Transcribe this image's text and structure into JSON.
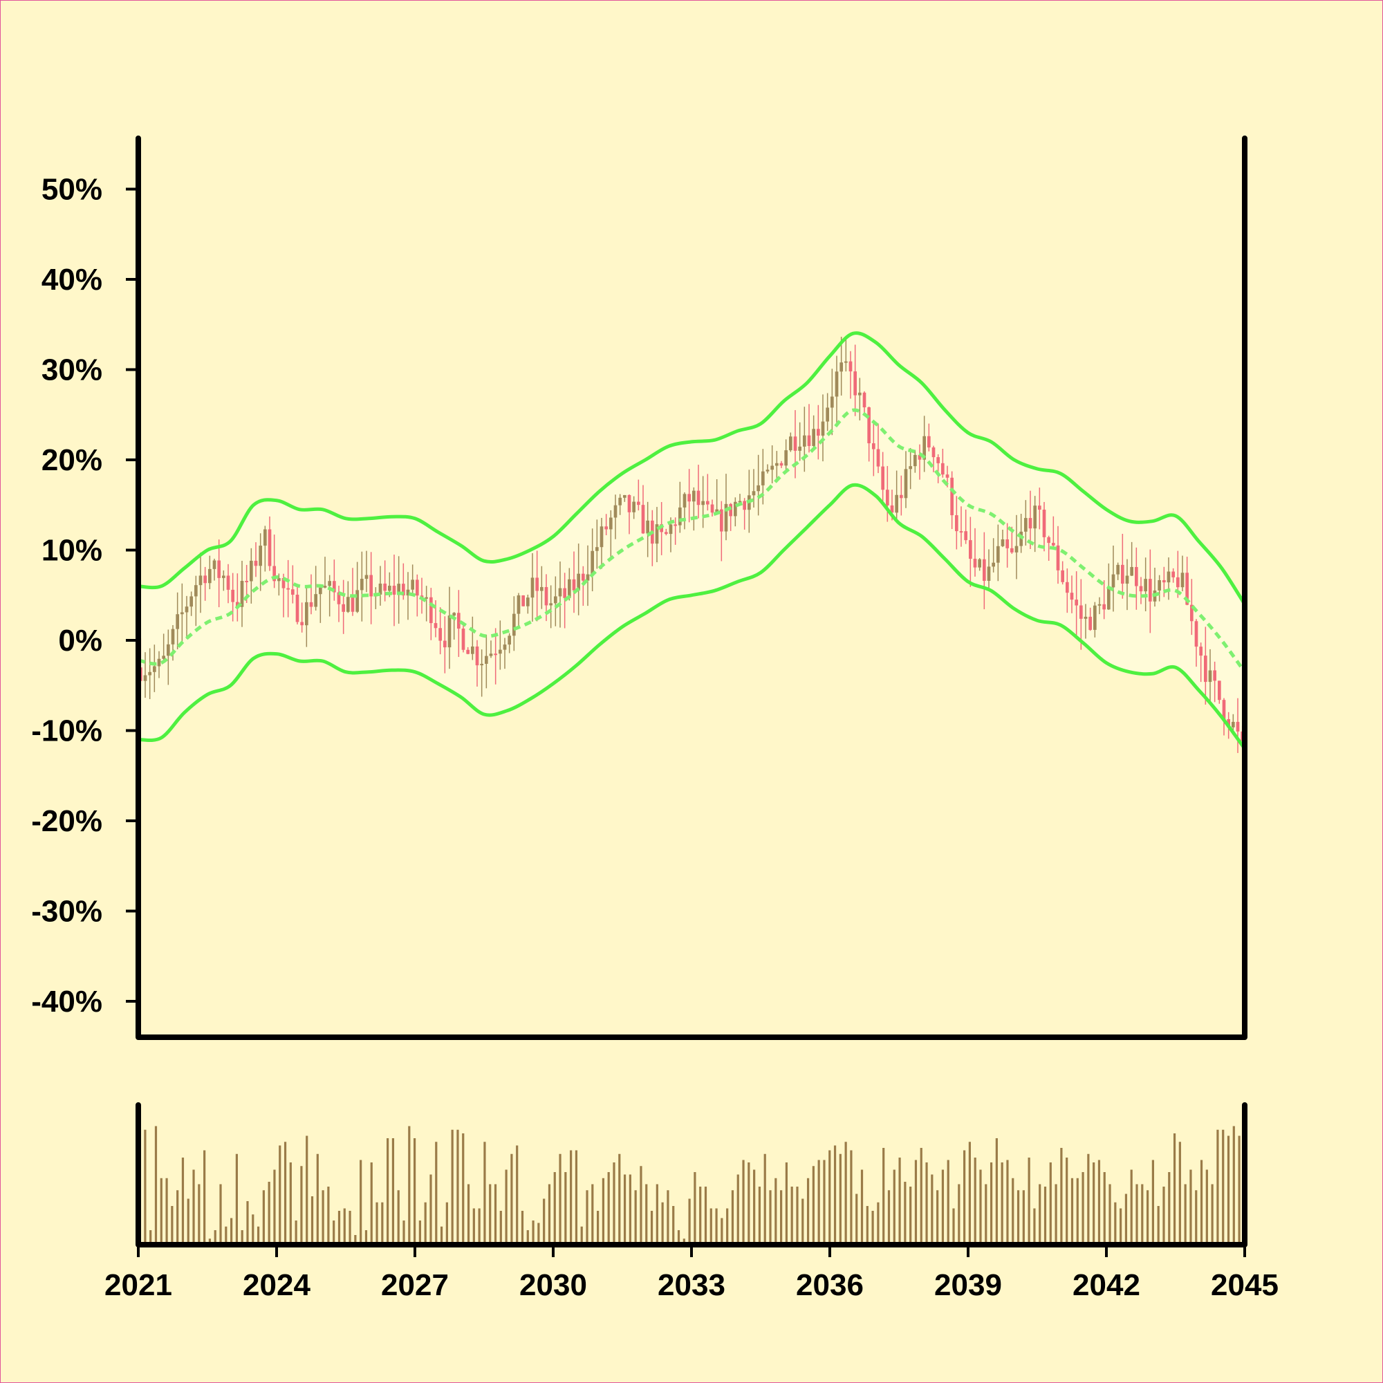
{
  "chart_data": {
    "type": "candlestick",
    "x_range": [
      2021,
      2045
    ],
    "ylim": [
      -0.47,
      0.56
    ],
    "y_ticks": [
      {
        "value": 0.5,
        "label": "50%"
      },
      {
        "value": 0.4,
        "label": "40%"
      },
      {
        "value": 0.3,
        "label": "30%"
      },
      {
        "value": 0.2,
        "label": "20%"
      },
      {
        "value": 0.1,
        "label": "10%"
      },
      {
        "value": 0.0,
        "label": "0%"
      },
      {
        "value": -0.1,
        "label": "-10%"
      },
      {
        "value": -0.2,
        "label": "-20%"
      },
      {
        "value": -0.3,
        "label": "-30%"
      },
      {
        "value": -0.4,
        "label": "-40%"
      }
    ],
    "x_ticks": [
      {
        "value": 2021,
        "label": "2021"
      },
      {
        "value": 2024,
        "label": "2024"
      },
      {
        "value": 2027,
        "label": "2027"
      },
      {
        "value": 2030,
        "label": "2030"
      },
      {
        "value": 2033,
        "label": "2033"
      },
      {
        "value": 2036,
        "label": "2036"
      },
      {
        "value": 2039,
        "label": "2039"
      },
      {
        "value": 2042,
        "label": "2042"
      },
      {
        "value": 2045,
        "label": "2045"
      }
    ],
    "close_path": [
      [
        2021.0,
        -0.03
      ],
      [
        2021.5,
        -0.03
      ],
      [
        2021.8,
        0.01
      ],
      [
        2022.2,
        0.06
      ],
      [
        2022.5,
        0.08
      ],
      [
        2022.9,
        0.07
      ],
      [
        2023.1,
        0.04
      ],
      [
        2023.5,
        0.08
      ],
      [
        2023.7,
        0.12
      ],
      [
        2024.0,
        0.07
      ],
      [
        2024.3,
        0.04
      ],
      [
        2024.6,
        0.03
      ],
      [
        2024.9,
        0.06
      ],
      [
        2025.3,
        0.05
      ],
      [
        2025.6,
        0.04
      ],
      [
        2025.9,
        0.06
      ],
      [
        2026.3,
        0.05
      ],
      [
        2026.7,
        0.06
      ],
      [
        2027.1,
        0.05
      ],
      [
        2027.4,
        0.03
      ],
      [
        2027.6,
        0.0
      ],
      [
        2027.8,
        0.02
      ],
      [
        2028.1,
        0.0
      ],
      [
        2028.4,
        -0.02
      ],
      [
        2028.7,
        -0.01
      ],
      [
        2029.0,
        0.01
      ],
      [
        2029.3,
        0.04
      ],
      [
        2029.6,
        0.06
      ],
      [
        2029.9,
        0.04
      ],
      [
        2030.3,
        0.05
      ],
      [
        2030.6,
        0.07
      ],
      [
        2030.9,
        0.1
      ],
      [
        2031.2,
        0.13
      ],
      [
        2031.5,
        0.15
      ],
      [
        2031.8,
        0.14
      ],
      [
        2032.1,
        0.12
      ],
      [
        2032.4,
        0.11
      ],
      [
        2032.7,
        0.14
      ],
      [
        2033.0,
        0.16
      ],
      [
        2033.3,
        0.14
      ],
      [
        2033.6,
        0.13
      ],
      [
        2033.9,
        0.15
      ],
      [
        2034.2,
        0.16
      ],
      [
        2034.5,
        0.17
      ],
      [
        2034.8,
        0.19
      ],
      [
        2035.1,
        0.22
      ],
      [
        2035.4,
        0.23
      ],
      [
        2035.7,
        0.23
      ],
      [
        2036.0,
        0.27
      ],
      [
        2036.2,
        0.3
      ],
      [
        2036.5,
        0.29
      ],
      [
        2036.8,
        0.24
      ],
      [
        2037.0,
        0.19
      ],
      [
        2037.3,
        0.14
      ],
      [
        2037.6,
        0.17
      ],
      [
        2037.9,
        0.21
      ],
      [
        2038.2,
        0.22
      ],
      [
        2038.5,
        0.18
      ],
      [
        2038.8,
        0.12
      ],
      [
        2039.1,
        0.08
      ],
      [
        2039.4,
        0.07
      ],
      [
        2039.7,
        0.1
      ],
      [
        2040.0,
        0.09
      ],
      [
        2040.3,
        0.14
      ],
      [
        2040.6,
        0.13
      ],
      [
        2040.9,
        0.09
      ],
      [
        2041.2,
        0.05
      ],
      [
        2041.5,
        0.02
      ],
      [
        2041.8,
        0.03
      ],
      [
        2042.1,
        0.06
      ],
      [
        2042.4,
        0.08
      ],
      [
        2042.7,
        0.07
      ],
      [
        2043.0,
        0.05
      ],
      [
        2043.3,
        0.06
      ],
      [
        2043.6,
        0.07
      ],
      [
        2043.9,
        0.01
      ],
      [
        2044.2,
        -0.04
      ],
      [
        2044.5,
        -0.07
      ],
      [
        2044.8,
        -0.1
      ],
      [
        2045.0,
        -0.13
      ]
    ],
    "bollinger": {
      "middle": [
        [
          2021.0,
          -0.022
        ],
        [
          2021.5,
          -0.025
        ],
        [
          2022.0,
          0.0
        ],
        [
          2022.5,
          0.02
        ],
        [
          2023.0,
          0.03
        ],
        [
          2023.5,
          0.055
        ],
        [
          2024.0,
          0.07
        ],
        [
          2024.5,
          0.06
        ],
        [
          2025.0,
          0.06
        ],
        [
          2025.5,
          0.05
        ],
        [
          2026.0,
          0.05
        ],
        [
          2026.5,
          0.052
        ],
        [
          2027.0,
          0.05
        ],
        [
          2027.5,
          0.035
        ],
        [
          2028.0,
          0.02
        ],
        [
          2028.5,
          0.005
        ],
        [
          2029.0,
          0.01
        ],
        [
          2029.5,
          0.02
        ],
        [
          2030.0,
          0.035
        ],
        [
          2030.5,
          0.055
        ],
        [
          2031.0,
          0.08
        ],
        [
          2031.5,
          0.1
        ],
        [
          2032.0,
          0.115
        ],
        [
          2032.5,
          0.13
        ],
        [
          2033.0,
          0.135
        ],
        [
          2033.5,
          0.14
        ],
        [
          2034.0,
          0.15
        ],
        [
          2034.5,
          0.16
        ],
        [
          2035.0,
          0.185
        ],
        [
          2035.5,
          0.205
        ],
        [
          2036.0,
          0.23
        ],
        [
          2036.5,
          0.255
        ],
        [
          2037.0,
          0.24
        ],
        [
          2037.5,
          0.215
        ],
        [
          2038.0,
          0.205
        ],
        [
          2038.5,
          0.175
        ],
        [
          2039.0,
          0.15
        ],
        [
          2039.5,
          0.14
        ],
        [
          2040.0,
          0.12
        ],
        [
          2040.5,
          0.105
        ],
        [
          2041.0,
          0.1
        ],
        [
          2041.5,
          0.08
        ],
        [
          2042.0,
          0.06
        ],
        [
          2042.5,
          0.05
        ],
        [
          2043.0,
          0.05
        ],
        [
          2043.5,
          0.055
        ],
        [
          2044.0,
          0.03
        ],
        [
          2044.5,
          0.0
        ],
        [
          2045.0,
          -0.035
        ]
      ],
      "upper": [
        [
          2021.0,
          0.06
        ],
        [
          2021.5,
          0.06
        ],
        [
          2022.0,
          0.08
        ],
        [
          2022.5,
          0.1
        ],
        [
          2023.0,
          0.11
        ],
        [
          2023.5,
          0.15
        ],
        [
          2024.0,
          0.155
        ],
        [
          2024.5,
          0.145
        ],
        [
          2025.0,
          0.145
        ],
        [
          2025.5,
          0.135
        ],
        [
          2026.0,
          0.135
        ],
        [
          2026.5,
          0.137
        ],
        [
          2027.0,
          0.135
        ],
        [
          2027.5,
          0.12
        ],
        [
          2028.0,
          0.105
        ],
        [
          2028.5,
          0.088
        ],
        [
          2029.0,
          0.09
        ],
        [
          2029.5,
          0.1
        ],
        [
          2030.0,
          0.115
        ],
        [
          2030.5,
          0.14
        ],
        [
          2031.0,
          0.165
        ],
        [
          2031.5,
          0.185
        ],
        [
          2032.0,
          0.2
        ],
        [
          2032.5,
          0.215
        ],
        [
          2033.0,
          0.22
        ],
        [
          2033.5,
          0.222
        ],
        [
          2034.0,
          0.232
        ],
        [
          2034.5,
          0.24
        ],
        [
          2035.0,
          0.265
        ],
        [
          2035.5,
          0.285
        ],
        [
          2036.0,
          0.315
        ],
        [
          2036.5,
          0.34
        ],
        [
          2037.0,
          0.33
        ],
        [
          2037.5,
          0.305
        ],
        [
          2038.0,
          0.285
        ],
        [
          2038.5,
          0.255
        ],
        [
          2039.0,
          0.23
        ],
        [
          2039.5,
          0.22
        ],
        [
          2040.0,
          0.2
        ],
        [
          2040.5,
          0.19
        ],
        [
          2041.0,
          0.185
        ],
        [
          2041.5,
          0.165
        ],
        [
          2042.0,
          0.145
        ],
        [
          2042.5,
          0.132
        ],
        [
          2043.0,
          0.132
        ],
        [
          2043.5,
          0.138
        ],
        [
          2044.0,
          0.11
        ],
        [
          2044.5,
          0.08
        ],
        [
          2045.0,
          0.04
        ]
      ],
      "lower": [
        [
          2021.0,
          -0.11
        ],
        [
          2021.5,
          -0.108
        ],
        [
          2022.0,
          -0.08
        ],
        [
          2022.5,
          -0.06
        ],
        [
          2023.0,
          -0.05
        ],
        [
          2023.5,
          -0.02
        ],
        [
          2024.0,
          -0.015
        ],
        [
          2024.5,
          -0.023
        ],
        [
          2025.0,
          -0.023
        ],
        [
          2025.5,
          -0.035
        ],
        [
          2026.0,
          -0.035
        ],
        [
          2026.5,
          -0.033
        ],
        [
          2027.0,
          -0.035
        ],
        [
          2027.5,
          -0.048
        ],
        [
          2028.0,
          -0.063
        ],
        [
          2028.5,
          -0.082
        ],
        [
          2029.0,
          -0.078
        ],
        [
          2029.5,
          -0.065
        ],
        [
          2030.0,
          -0.048
        ],
        [
          2030.5,
          -0.028
        ],
        [
          2031.0,
          -0.005
        ],
        [
          2031.5,
          0.015
        ],
        [
          2032.0,
          0.03
        ],
        [
          2032.5,
          0.045
        ],
        [
          2033.0,
          0.05
        ],
        [
          2033.5,
          0.055
        ],
        [
          2034.0,
          0.065
        ],
        [
          2034.5,
          0.075
        ],
        [
          2035.0,
          0.1
        ],
        [
          2035.5,
          0.125
        ],
        [
          2036.0,
          0.15
        ],
        [
          2036.5,
          0.172
        ],
        [
          2037.0,
          0.16
        ],
        [
          2037.5,
          0.13
        ],
        [
          2038.0,
          0.115
        ],
        [
          2038.5,
          0.09
        ],
        [
          2039.0,
          0.065
        ],
        [
          2039.5,
          0.055
        ],
        [
          2040.0,
          0.035
        ],
        [
          2040.5,
          0.022
        ],
        [
          2041.0,
          0.017
        ],
        [
          2041.5,
          -0.003
        ],
        [
          2042.0,
          -0.025
        ],
        [
          2042.5,
          -0.035
        ],
        [
          2043.0,
          -0.037
        ],
        [
          2043.5,
          -0.03
        ],
        [
          2044.0,
          -0.055
        ],
        [
          2044.5,
          -0.085
        ],
        [
          2045.0,
          -0.12
        ]
      ]
    },
    "volume_relative": [
      0.95,
      0.12,
      0.98,
      0.55,
      0.55,
      0.32,
      0.45,
      0.72,
      0.38,
      0.62,
      0.5,
      0.78,
      0.05,
      0.12,
      0.5,
      0.15,
      0.22,
      0.75,
      0.12,
      0.36,
      0.25,
      0.15,
      0.45,
      0.52,
      0.62,
      0.82,
      0.85,
      0.68,
      0.2,
      0.65,
      0.9,
      0.4,
      0.75,
      0.45,
      0.48,
      0.2,
      0.28,
      0.3,
      0.28,
      0.08,
      0.7,
      0.12,
      0.68,
      0.35,
      0.35,
      0.88,
      0.88,
      0.45,
      0.2,
      0.98,
      0.88,
      0.2,
      0.35,
      0.58,
      0.85,
      0.15,
      0.35,
      0.95,
      0.95,
      0.92,
      0.5,
      0.3,
      0.3,
      0.85,
      0.5,
      0.5,
      0.28,
      0.62,
      0.75,
      0.82,
      0.28,
      0.12,
      0.2,
      0.18,
      0.38,
      0.5,
      0.6,
      0.75,
      0.6,
      0.78,
      0.78,
      0.15,
      0.45,
      0.5,
      0.28,
      0.55,
      0.6,
      0.68,
      0.75,
      0.58,
      0.58,
      0.45,
      0.65,
      0.5,
      0.28,
      0.5,
      0.35,
      0.45,
      0.32,
      0.12,
      0.05,
      0.38,
      0.6,
      0.48,
      0.48,
      0.3,
      0.3,
      0.22,
      0.3,
      0.45,
      0.58,
      0.7,
      0.68,
      0.62,
      0.48,
      0.75,
      0.45,
      0.55,
      0.45,
      0.68,
      0.48,
      0.48,
      0.38,
      0.55,
      0.65,
      0.7,
      0.7,
      0.78,
      0.82,
      0.75,
      0.85,
      0.78,
      0.42,
      0.62,
      0.32,
      0.28,
      0.35,
      0.8,
      0.45,
      0.62,
      0.72,
      0.52,
      0.48,
      0.7,
      0.8,
      0.68,
      0.58,
      0.45,
      0.62,
      0.7,
      0.3,
      0.5,
      0.78,
      0.85,
      0.72,
      0.62,
      0.5,
      0.68,
      0.88,
      0.68,
      0.7,
      0.55,
      0.45,
      0.45,
      0.72,
      0.3,
      0.5,
      0.48,
      0.68,
      0.5,
      0.8,
      0.72,
      0.55,
      0.55,
      0.6,
      0.75,
      0.68,
      0.7,
      0.6,
      0.5,
      0.35,
      0.3,
      0.42,
      0.62,
      0.5,
      0.5,
      0.45,
      0.7,
      0.32,
      0.48,
      0.6,
      0.92,
      0.85,
      0.5,
      0.62,
      0.45,
      0.7,
      0.62,
      0.5,
      0.95,
      0.95,
      0.9,
      0.98,
      0.9
    ]
  }
}
